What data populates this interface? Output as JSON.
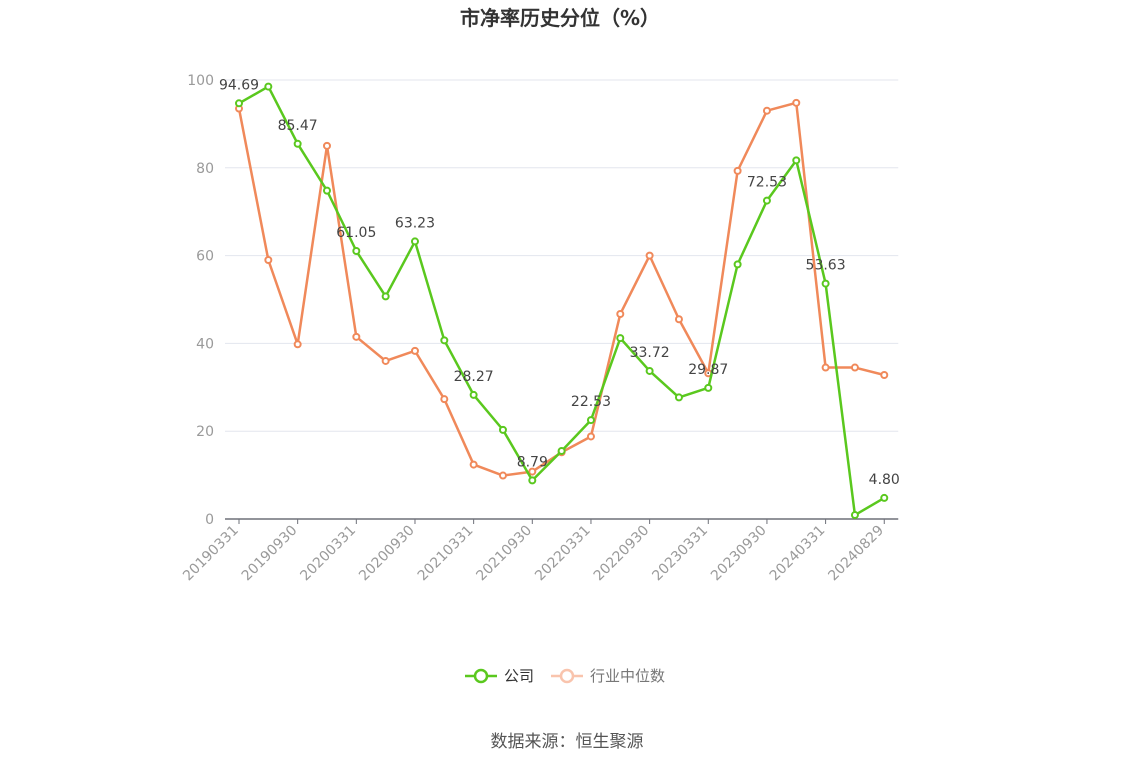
{
  "chart_data": {
    "type": "line",
    "title": "市净率历史分位（%）",
    "source": "数据来源：恒生聚源",
    "ylim": [
      0,
      100
    ],
    "yticks": [
      "0",
      "20",
      "40",
      "60",
      "80",
      "100"
    ],
    "xticks": [
      "20190331",
      "20190930",
      "20200331",
      "20200930",
      "20210331",
      "20210930",
      "20220331",
      "20220930",
      "20230331",
      "20230930",
      "20240331",
      "20240829"
    ],
    "grid": true,
    "legend_position": "bottom-center",
    "series": [
      {
        "name": "公司",
        "color": "#5ac81e",
        "values": [
          94.69,
          98.5,
          85.47,
          74.8,
          61.05,
          50.7,
          63.23,
          40.7,
          28.27,
          20.3,
          8.79,
          15.5,
          22.53,
          41.2,
          33.72,
          27.7,
          29.87,
          58.0,
          72.53,
          81.7,
          53.63,
          0.9,
          4.8
        ],
        "labels": [
          "94.69",
          "",
          "85.47",
          "",
          "61.05",
          "",
          "63.23",
          "",
          "28.27",
          "",
          "8.79",
          "",
          "22.53",
          "",
          "33.72",
          "",
          "29.87",
          "",
          "72.53",
          "",
          "53.63",
          "",
          "4.80"
        ]
      },
      {
        "name": "行业中位数",
        "color": "#f0895a",
        "values": [
          93.5,
          59.0,
          39.8,
          85.0,
          41.5,
          36.0,
          38.3,
          27.3,
          12.4,
          9.9,
          10.8,
          15.2,
          18.8,
          46.7,
          60.0,
          45.5,
          33.2,
          79.3,
          93.0,
          94.8,
          34.5,
          34.5,
          32.8
        ]
      }
    ]
  }
}
